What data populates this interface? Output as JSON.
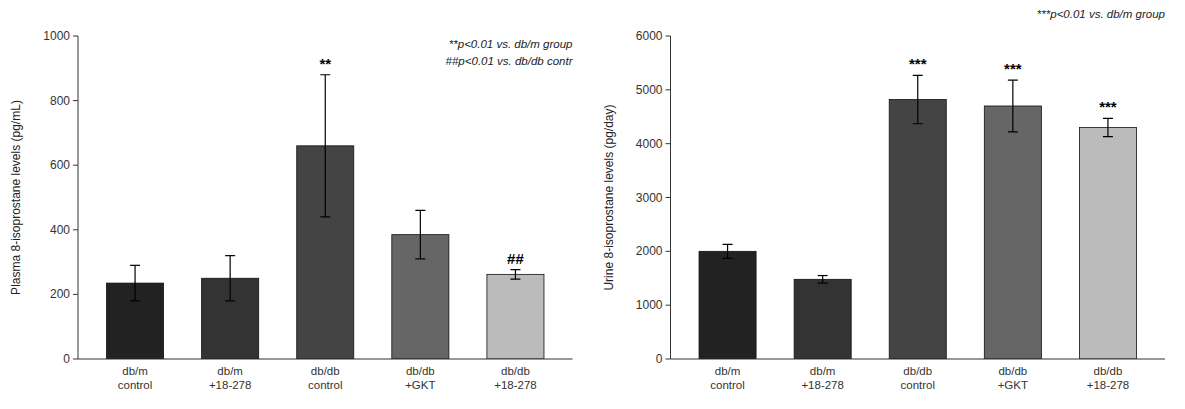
{
  "chart_data": [
    {
      "type": "bar",
      "ylabel": "Plasma 8-isoprostane levels (pg/mL)",
      "categories": [
        "db/m\ncontrol",
        "db/m\n+18-278",
        "db/db\ncontrol",
        "db/db\n+GKT",
        "db/db\n+18-278"
      ],
      "values": [
        235,
        250,
        660,
        385,
        262
      ],
      "errors": [
        55,
        70,
        220,
        75,
        15
      ],
      "colors": [
        "#222222",
        "#333333",
        "#444444",
        "#666666",
        "#bbbbbb"
      ],
      "ylim": [
        0,
        1000
      ],
      "yticks": [
        0,
        200,
        400,
        600,
        800,
        1000
      ],
      "grid": false,
      "annotations": [
        {
          "bar": 2,
          "text": "**"
        },
        {
          "bar": 4,
          "text": "##"
        },
        {
          "text": "**p<0.01 vs. db/m group"
        },
        {
          "text": "##p<0.01 vs. db/db contr"
        }
      ]
    },
    {
      "type": "bar",
      "ylabel": "Urine 8-isoprostane levels (pg/day)",
      "categories": [
        "db/m\ncontrol",
        "db/m\n+18-278",
        "db/db\ncontrol",
        "db/db\n+GKT",
        "db/db\n+18-278"
      ],
      "values": [
        2000,
        1480,
        4820,
        4700,
        4300
      ],
      "errors": [
        130,
        70,
        450,
        480,
        170
      ],
      "colors": [
        "#222222",
        "#333333",
        "#444444",
        "#666666",
        "#bbbbbb"
      ],
      "ylim": [
        0,
        6000
      ],
      "yticks": [
        0,
        1000,
        2000,
        3000,
        4000,
        5000,
        6000
      ],
      "grid": false,
      "annotations": [
        {
          "bar": 2,
          "text": "***"
        },
        {
          "bar": 3,
          "text": "***"
        },
        {
          "bar": 4,
          "text": "***"
        },
        {
          "text": "***p<0.01 vs. db/m group"
        }
      ]
    }
  ]
}
